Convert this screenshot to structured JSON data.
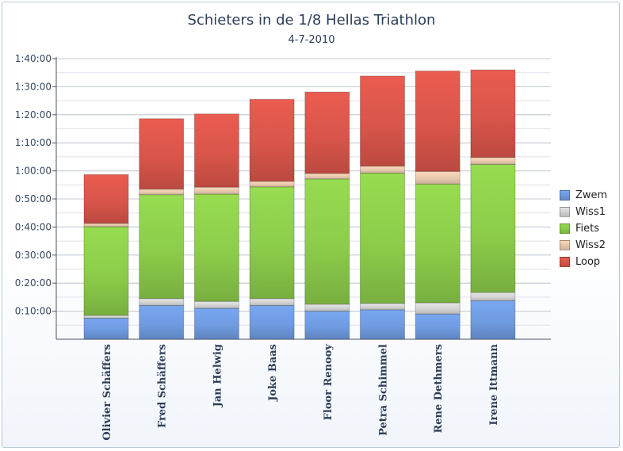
{
  "chart_data": {
    "type": "bar",
    "stacked": true,
    "title": "Schieters in de 1/8 Hellas Triathlon",
    "subtitle": "4-7-2010",
    "xlabel": "",
    "ylabel": "",
    "unit": "minutes",
    "ylim": [
      0,
      100
    ],
    "yticks": [
      10,
      20,
      30,
      40,
      50,
      60,
      70,
      80,
      90,
      100
    ],
    "ytick_labels": [
      "0:10:00",
      "0:20:00",
      "0:30:00",
      "0:40:00",
      "0:50:00",
      "1:00:00",
      "1:10:00",
      "1:20:00",
      "1:30:00",
      "1:40:00"
    ],
    "grid": true,
    "legend_position": "right",
    "categories": [
      "Olivier Schäffers",
      "Fred Schäffers",
      "Jan Helwig",
      "Joke Baas",
      "Floor Renooy",
      "Petra Schimmel",
      "Rene Dethmers",
      "Irene Ittmann"
    ],
    "series": [
      {
        "name": "Zwem",
        "color": "#6f9be0",
        "values": [
          7.5,
          12.0,
          11.0,
          12.0,
          10.0,
          10.5,
          9.0,
          13.7
        ]
      },
      {
        "name": "Wiss1",
        "color": "#d4d4d4",
        "values": [
          1.0,
          2.5,
          2.5,
          2.5,
          2.5,
          2.3,
          4.0,
          3.0
        ]
      },
      {
        "name": "Fiets",
        "color": "#8ccc4a",
        "values": [
          31.6,
          37.0,
          38.2,
          39.8,
          44.6,
          46.4,
          42.3,
          45.6
        ]
      },
      {
        "name": "Wiss2",
        "color": "#e9c9ae",
        "values": [
          1.2,
          2.0,
          2.5,
          2.0,
          2.0,
          2.5,
          4.5,
          2.5
        ]
      },
      {
        "name": "Loop",
        "color": "#d9554a",
        "values": [
          17.4,
          25.1,
          26.1,
          29.2,
          29.0,
          32.1,
          35.8,
          31.2
        ]
      }
    ]
  }
}
